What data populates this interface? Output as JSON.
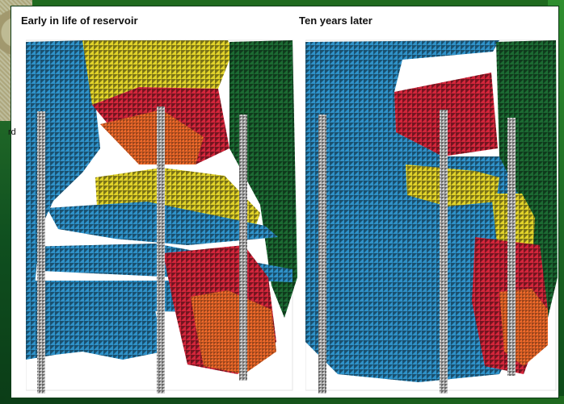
{
  "labels": {
    "left": "Early in life of reservoir",
    "right": "Ten years later",
    "edge_fragment": "rd"
  },
  "colors": {
    "blue": "#2f92c9",
    "red": "#d3263b",
    "yellow": "#e1d32a",
    "green": "#1c6a33",
    "orange": "#ef6a2a",
    "grey": "#cfcfcf",
    "white": "#ffffff"
  }
}
